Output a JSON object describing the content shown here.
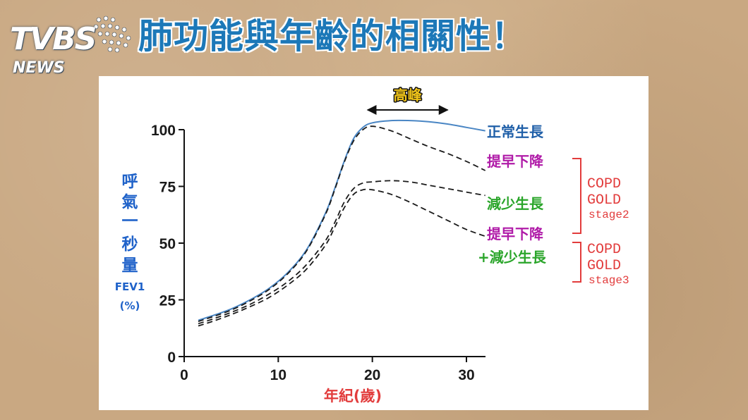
{
  "logo": {
    "brand": "TVBS",
    "sub": "NEWS"
  },
  "headline": "肺功能與年齡的相關性！",
  "chart_data": {
    "type": "line",
    "title": "",
    "xlabel": "年紀(歲)",
    "ylabel_lines": [
      "呼",
      "氣",
      "一",
      "秒",
      "量",
      "FEV1",
      "(%)"
    ],
    "xlim": [
      0,
      32
    ],
    "ylim": [
      0,
      100
    ],
    "xticks": [
      0,
      10,
      20,
      30
    ],
    "yticks": [
      0,
      25,
      50,
      75,
      100
    ],
    "peak_label": "高峰",
    "peak_range": [
      19.5,
      28
    ],
    "series": [
      {
        "name": "正常生長",
        "style": "solid",
        "color": "#4a86c4",
        "x": [
          1.5,
          3,
          5,
          7,
          9,
          11,
          13,
          15,
          16,
          17,
          18,
          19,
          20,
          22,
          24,
          26,
          28,
          30,
          32
        ],
        "y": [
          16,
          18,
          21,
          25,
          30,
          37,
          47,
          63,
          74,
          86,
          96,
          101,
          103,
          104,
          104,
          103.5,
          102.5,
          101,
          99.5
        ]
      },
      {
        "name": "提早下降",
        "style": "dashed",
        "color": "#1a1a1a",
        "x": [
          1.5,
          3,
          5,
          7,
          9,
          11,
          13,
          15,
          16,
          17,
          18,
          19,
          20,
          22,
          24,
          26,
          28,
          30,
          32
        ],
        "y": [
          15.5,
          17.5,
          20.5,
          24.5,
          29.5,
          36.5,
          46.5,
          62.5,
          73.5,
          85.5,
          95,
          100,
          101.5,
          99.5,
          96,
          92.5,
          89.5,
          86,
          82
        ]
      },
      {
        "name": "減少生長",
        "style": "dashed",
        "color": "#1a1a1a",
        "x": [
          1.5,
          3,
          5,
          7,
          9,
          11,
          13,
          15,
          16,
          17,
          18,
          19,
          20,
          22,
          24,
          26,
          28,
          30,
          32
        ],
        "y": [
          14.5,
          16.5,
          19.5,
          23,
          27.5,
          33,
          40.5,
          51,
          59,
          68,
          74,
          76.5,
          77,
          77.5,
          77,
          75.5,
          74,
          72.5,
          71
        ]
      },
      {
        "name": "提早下降+減少生長",
        "style": "dashed",
        "color": "#1a1a1a",
        "x": [
          1.5,
          3,
          5,
          7,
          9,
          11,
          13,
          15,
          16,
          17,
          18,
          19,
          20,
          22,
          24,
          26,
          28,
          30,
          32
        ],
        "y": [
          13.5,
          15.5,
          18.5,
          22,
          26,
          31.5,
          38.5,
          49,
          57,
          65.5,
          71.5,
          73.5,
          73.5,
          71.5,
          68,
          64,
          60,
          56,
          53
        ]
      }
    ],
    "labels": {
      "normal": "正常生長",
      "early_decline": "提早下降",
      "reduced_growth": "減少生長",
      "both_line1": "提早下降",
      "both_line2": "+減少生長"
    },
    "annotations": [
      {
        "lines": [
          "COPD",
          "GOLD",
          "stage2"
        ],
        "color": "#e23c3c"
      },
      {
        "lines": [
          "COPD",
          "GOLD",
          "stage3"
        ],
        "color": "#e23c3c"
      }
    ]
  },
  "colors": {
    "headline": "#1c78b8",
    "ylabel": "#1f62c9",
    "xlabel": "#e23c3c",
    "normal_label": "#1f5fa8",
    "decline_label": "#b01ba8",
    "reduced_label": "#2aa52a",
    "peak_label": "#f0c419",
    "bracket": "#e23c3c"
  }
}
